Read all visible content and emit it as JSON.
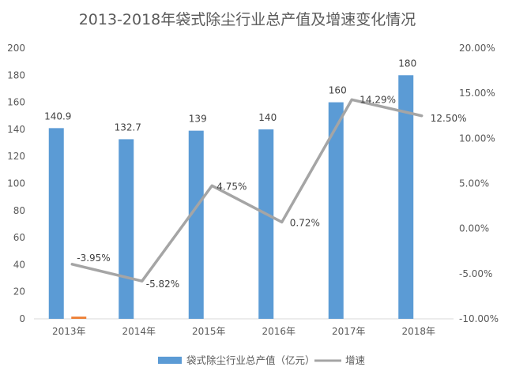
{
  "chart_data": {
    "type": "bar",
    "title": "2013-2018年袋式除尘行业总产值及增速变化情况",
    "categories": [
      "2013年",
      "2014年",
      "2015年",
      "2016年",
      "2017年",
      "2018年"
    ],
    "series": [
      {
        "name": "袋式除尘行业总产值（亿元）",
        "type": "bar",
        "axis": "left",
        "color": "#5B9BD5",
        "values": [
          140.9,
          132.7,
          139,
          140,
          160,
          180
        ],
        "labels": [
          "140.9",
          "132.7",
          "139",
          "140",
          "160",
          "180"
        ]
      },
      {
        "name": "增速",
        "type": "line",
        "axis": "right",
        "color": "#A5A5A5",
        "values": [
          -3.95,
          -5.82,
          4.75,
          0.72,
          14.29,
          12.5
        ],
        "labels": [
          "-3.95%",
          "-5.82%",
          "4.75%",
          "0.72%",
          "14.29%",
          "12.50%"
        ]
      }
    ],
    "stray_mark": {
      "category": "2013年",
      "value": 1,
      "color": "#ED7D31"
    },
    "y_left": {
      "min": 0,
      "max": 200,
      "step": 20,
      "ticks": [
        "0",
        "20",
        "40",
        "60",
        "80",
        "100",
        "120",
        "140",
        "160",
        "180",
        "200"
      ]
    },
    "y_right": {
      "min": -10,
      "max": 20,
      "step": 5,
      "ticks": [
        "-10.00%",
        "-5.00%",
        "0.00%",
        "5.00%",
        "10.00%",
        "15.00%",
        "20.00%"
      ]
    },
    "grid": false,
    "legend_position": "bottom"
  }
}
